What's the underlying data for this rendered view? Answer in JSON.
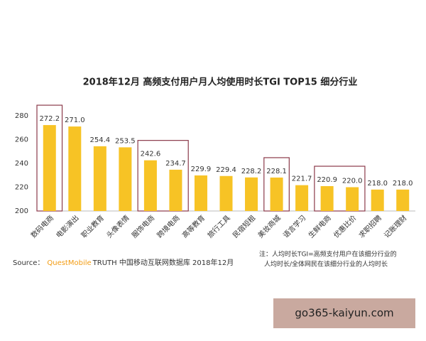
{
  "chart_data": {
    "type": "bar",
    "title": "2018年12月 高频支付用户月人均使用时长TGI TOP15 细分行业",
    "categories": [
      "数码电商",
      "电影演出",
      "职业教育",
      "头像表情",
      "服饰电商",
      "跨境电商",
      "高等教育",
      "旅行工具",
      "民宿短租",
      "美妆商城",
      "语言学习",
      "生鲜电商",
      "优惠比价",
      "求职招聘",
      "记账理财"
    ],
    "values": [
      272.2,
      271.0,
      254.4,
      253.5,
      242.6,
      234.7,
      229.9,
      229.4,
      228.2,
      228.1,
      221.7,
      220.9,
      220.0,
      218.0,
      218.0
    ],
    "value_labels": [
      "272.2",
      "271.0",
      "254.4",
      "253.5",
      "242.6",
      "234.7",
      "229.9",
      "229.4",
      "228.2",
      "228.1",
      "221.7",
      "220.9",
      "220.0",
      "218.0",
      "218.0"
    ],
    "color": "#f7c325",
    "ylim": [
      200,
      280
    ],
    "yticks": [
      200,
      220,
      240,
      260,
      280
    ],
    "grid": false,
    "source_label": "Source：",
    "source_brand": "QuestMobile",
    "source_text": "TRUTH 中国移动互联网数据库 2018年12月",
    "note_lines": [
      "注：人均时长TGI=高频支付用户在该细分行业的",
      "人均时长/全体网民在该细分行业的人均时长"
    ]
  },
  "watermark": "go365-kaiyun.com"
}
